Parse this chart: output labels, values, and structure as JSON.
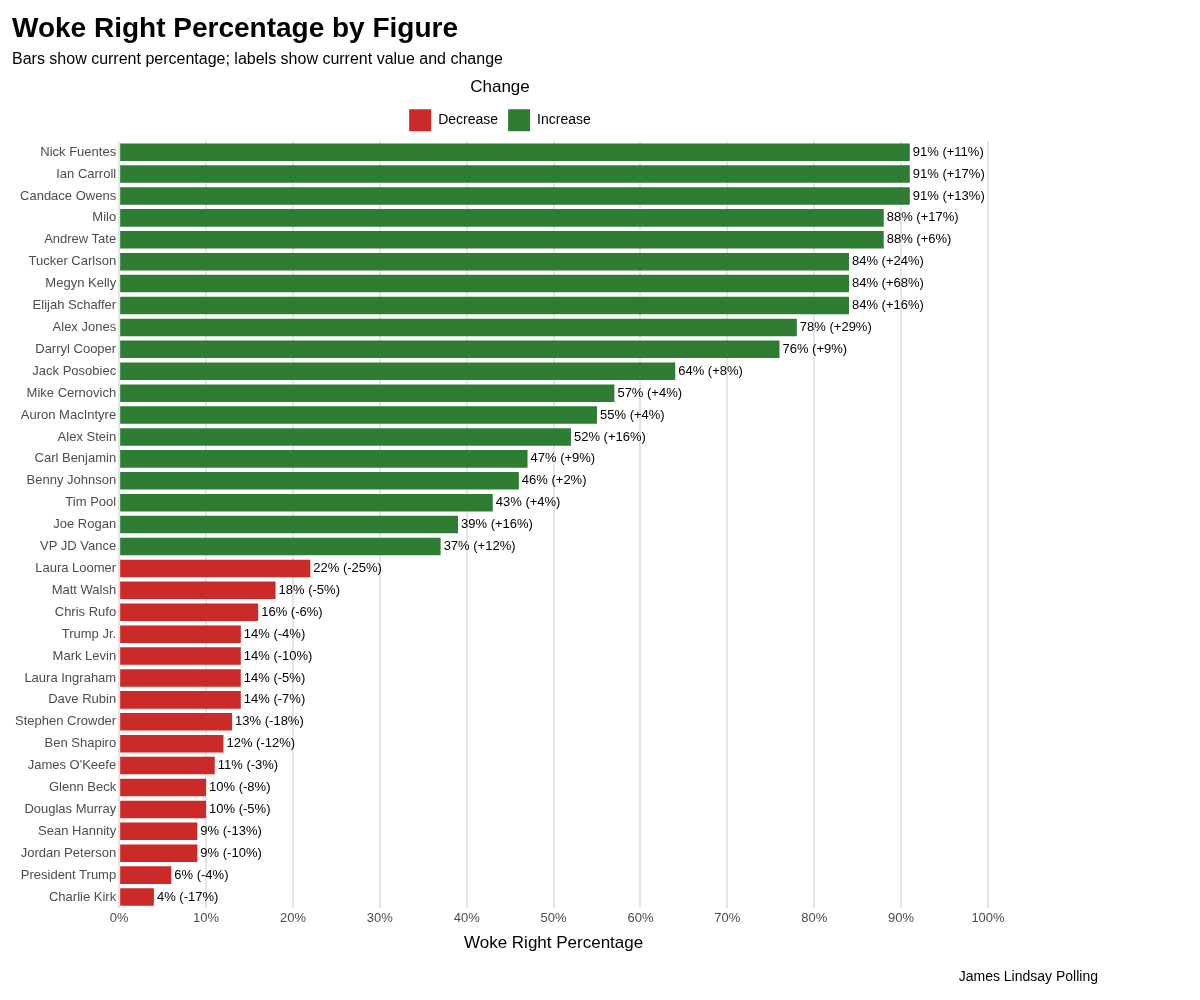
{
  "chart_data": {
    "type": "bar",
    "orientation": "horizontal",
    "stacked": true,
    "title": "Woke Right Percentage by Figure",
    "subtitle": "Bars show current percentage; labels show current value and change",
    "xlabel": "Woke Right Percentage",
    "legend_title": "Change",
    "legend": "top",
    "grid": "x",
    "categories": [
      "Nick Fuentes",
      "Ian Carroll",
      "Candace Owens",
      "Milo",
      "Andrew Tate",
      "Tucker Carlson",
      "Megyn Kelly",
      "Elijah Schaffer",
      "Alex Jones",
      "Darryl Cooper",
      "Jack Posobiec",
      "Mike Cernovich",
      "Auron MacIntyre",
      "Alex Stein",
      "Carl Benjamin",
      "Benny Johnson",
      "Tim Pool",
      "Joe Rogan",
      "VP JD Vance",
      "Laura Loomer",
      "Matt Walsh",
      "Chris Rufo",
      "Trump Jr.",
      "Mark Levin",
      "Laura Ingraham",
      "Dave Rubin",
      "Stephen Crowder",
      "Ben Shapiro",
      "James O'Keefe",
      "Glenn Beck",
      "Douglas Murray",
      "Sean Hannity",
      "Jordan Peterson",
      "President Trump",
      "Charlie Kirk"
    ],
    "series": [
      {
        "name": "Decrease",
        "color": "#cc2929",
        "values": [
          null,
          null,
          null,
          null,
          null,
          null,
          null,
          null,
          null,
          null,
          null,
          null,
          null,
          null,
          null,
          null,
          null,
          null,
          null,
          22,
          18,
          16,
          14,
          14,
          14,
          14,
          13,
          12,
          11,
          10,
          10,
          9,
          9,
          6,
          4
        ],
        "value_labels": [
          null,
          null,
          null,
          null,
          null,
          null,
          null,
          null,
          null,
          null,
          null,
          null,
          null,
          null,
          null,
          null,
          null,
          null,
          null,
          "22% (-25%)",
          "18% (-5%)",
          "16% (-6%)",
          "14% (-4%)",
          "14% (-10%)",
          "14% (-5%)",
          "14% (-7%)",
          "13% (-18%)",
          "12% (-12%)",
          "11% (-3%)",
          "10% (-8%)",
          "10% (-5%)",
          "9% (-13%)",
          "9% (-10%)",
          "6% (-4%)",
          "4% (-17%)"
        ]
      },
      {
        "name": "Increase",
        "color": "#2e7d32",
        "values": [
          91,
          91,
          91,
          88,
          88,
          84,
          84,
          84,
          78,
          76,
          64,
          57,
          55,
          52,
          47,
          46,
          43,
          39,
          37,
          null,
          null,
          null,
          null,
          null,
          null,
          null,
          null,
          null,
          null,
          null,
          null,
          null,
          null,
          null,
          null
        ],
        "value_labels": [
          "91% (+11%)",
          "91% (+17%)",
          "91% (+13%)",
          "88% (+17%)",
          "88% (+6%)",
          "84% (+24%)",
          "84% (+68%)",
          "84% (+16%)",
          "78% (+29%)",
          "76% (+9%)",
          "64% (+8%)",
          "57% (+4%)",
          "55% (+4%)",
          "52% (+16%)",
          "47% (+9%)",
          "46% (+2%)",
          "43% (+4%)",
          "39% (+16%)",
          "37% (+12%)",
          null,
          null,
          null,
          null,
          null,
          null,
          null,
          null,
          null,
          null,
          null,
          null,
          null,
          null,
          null,
          null
        ]
      }
    ],
    "xlim": [
      0,
      100
    ],
    "xticks": [
      {
        "value": 0,
        "label": "0%"
      },
      {
        "value": 10,
        "label": "10%"
      },
      {
        "value": 20,
        "label": "20%"
      },
      {
        "value": 30,
        "label": "30%"
      },
      {
        "value": 40,
        "label": "40%"
      },
      {
        "value": 50,
        "label": "50%"
      },
      {
        "value": 60,
        "label": "60%"
      },
      {
        "value": 70,
        "label": "70%"
      },
      {
        "value": 80,
        "label": "80%"
      },
      {
        "value": 90,
        "label": "90%"
      },
      {
        "value": 100,
        "label": "100%"
      }
    ],
    "annotations": [
      "James Lindsay Polling"
    ]
  }
}
